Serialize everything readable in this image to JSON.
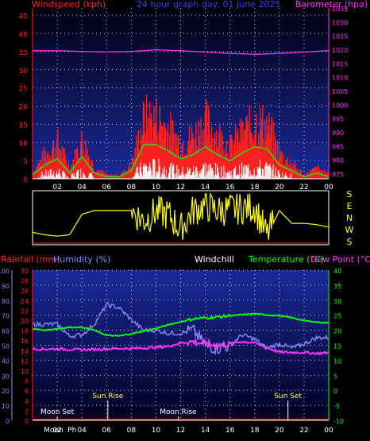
{
  "colors": {
    "wind": "#ff2020",
    "gust_green": "#00ff00",
    "white_bars": "#ffffff",
    "barometer": "#ff33ff",
    "direction": "#ffff00",
    "humidity": "#8888ff",
    "temperature": "#00ff00",
    "dewpoint": "#ff33ff",
    "rainfall": "#ff2020",
    "grid": "#ffffff",
    "panel_top": "#1a2a9a",
    "panel_bottom": "#000020"
  },
  "header": {
    "windspeed_label": "Windspeed (kph)",
    "graph_title": "24 hour graph day: 01 June 2025",
    "barometer_label": "Barometer (hpa)"
  },
  "panel2_header": {
    "rainfall_label": "Rainfall (mm)",
    "humidity_label": "Humidity (%)",
    "windchill_label": "Windchill",
    "temperature_label": "Temperature (°C)",
    "dewpoint_label": "Dew Point (°C)"
  },
  "chart_data": [
    {
      "type": "area",
      "xlabel": "",
      "x_ticks": [
        "02",
        "04",
        "06",
        "08",
        "10",
        "12",
        "14",
        "16",
        "18",
        "20",
        "22",
        "00"
      ],
      "ylabel": "Windspeed (kph)",
      "ylim": [
        0,
        47
      ],
      "y_ticks": [
        0,
        5,
        10,
        15,
        20,
        25,
        30,
        35,
        40,
        45
      ],
      "y2label": "Barometer (hpa)",
      "y2lim": [
        973,
        1035
      ],
      "y2_ticks": [
        975,
        980,
        985,
        990,
        995,
        1000,
        1005,
        1010,
        1015,
        1020,
        1025,
        1030,
        1035
      ],
      "series": [
        {
          "name": "Windspeed (kph)",
          "x": [
            0,
            1,
            2,
            3,
            4,
            5,
            6,
            7,
            8,
            9,
            10,
            11,
            12,
            13,
            14,
            15,
            16,
            17,
            18,
            19,
            20,
            21,
            22,
            23,
            24
          ],
          "values": [
            2,
            7,
            10,
            3,
            11,
            3,
            1,
            1,
            4,
            17,
            17,
            14,
            10,
            12,
            16,
            12,
            9,
            13,
            16,
            15,
            7,
            4,
            1,
            3,
            1
          ]
        },
        {
          "name": "Barometer (hpa)",
          "x": [
            0,
            2,
            4,
            6,
            8,
            10,
            12,
            14,
            16,
            18,
            20,
            22,
            24
          ],
          "values": [
            1019.5,
            1019.5,
            1019.2,
            1019,
            1019.2,
            1019.8,
            1019.5,
            1019,
            1018.5,
            1018.2,
            1018.5,
            1019,
            1019.5
          ]
        }
      ]
    },
    {
      "type": "line",
      "xlim": [
        0,
        24
      ],
      "y_labels": [
        "S",
        "E",
        "N",
        "W",
        "S"
      ],
      "series": [
        {
          "name": "Wind direction",
          "x": [
            0,
            1,
            2,
            3,
            4,
            5,
            6,
            7,
            8,
            9,
            10,
            11,
            12,
            13,
            14,
            15,
            16,
            17,
            18,
            19,
            20,
            21,
            22,
            23,
            24
          ],
          "values": [
            60,
            40,
            30,
            40,
            200,
            230,
            230,
            230,
            230,
            150,
            220,
            200,
            80,
            230,
            270,
            230,
            240,
            250,
            260,
            30,
            230,
            130,
            130,
            120,
            100
          ]
        }
      ]
    },
    {
      "type": "line",
      "x_ticks": [
        "02",
        "04",
        "06",
        "08",
        "10",
        "12",
        "14",
        "16",
        "18",
        "20",
        "22",
        "00"
      ],
      "y_rain_ticks": [
        0,
        2,
        4,
        6,
        8,
        10,
        12,
        14,
        16,
        18,
        20,
        22,
        24,
        26,
        28,
        30
      ],
      "y_humidity_ticks": [
        0,
        10,
        20,
        30,
        40,
        50,
        60,
        70,
        80,
        90,
        100
      ],
      "y_temp_ticks": [
        -10,
        -5,
        0,
        5,
        10,
        15,
        20,
        25,
        30,
        35,
        40
      ],
      "annotations": [
        {
          "text": "Moon Set",
          "x": 2.0
        },
        {
          "text": "Sun Rise",
          "x": 6.1
        },
        {
          "text": "Moon Rise",
          "x": 11.8
        },
        {
          "text": "Sun Set",
          "x": 20.7
        },
        {
          "text": "Moon",
          "x": 1.7
        },
        {
          "text": "Ph",
          "x": 3.2
        }
      ],
      "series": [
        {
          "name": "Humidity (%)",
          "x": [
            0,
            1,
            2,
            3,
            4,
            5,
            6,
            7,
            8,
            9,
            10,
            11,
            12,
            13,
            14,
            15,
            16,
            17,
            18,
            19,
            20,
            21,
            22,
            23,
            24
          ],
          "values": [
            64,
            64,
            64,
            56,
            57,
            64,
            77,
            75,
            67,
            60,
            60,
            58,
            58,
            60,
            50,
            48,
            50,
            57,
            54,
            48,
            51,
            48,
            51,
            55,
            55
          ]
        },
        {
          "name": "Temperature (°C)",
          "x": [
            0,
            1,
            2,
            3,
            4,
            5,
            6,
            7,
            8,
            9,
            10,
            11,
            12,
            13,
            14,
            15,
            16,
            17,
            18,
            19,
            20,
            21,
            22,
            23,
            24
          ],
          "values": [
            20.5,
            20,
            20.5,
            21,
            21,
            20,
            18.3,
            18.1,
            18.8,
            19.7,
            20.6,
            21.8,
            22.8,
            23.8,
            24.1,
            24.4,
            24.8,
            25.2,
            25.5,
            25.1,
            24.8,
            24.2,
            23.2,
            22.7,
            22.4
          ]
        },
        {
          "name": "Dew Point (°C)",
          "x": [
            0,
            1,
            2,
            3,
            4,
            5,
            6,
            7,
            8,
            9,
            10,
            11,
            12,
            13,
            14,
            15,
            16,
            17,
            18,
            19,
            20,
            21,
            22,
            23,
            24
          ],
          "values": [
            13.7,
            13.7,
            13.8,
            13.6,
            13.5,
            13.6,
            13.8,
            13.9,
            13.9,
            14.1,
            14.3,
            14.6,
            15.8,
            16.2,
            15.5,
            14.9,
            15.6,
            16.2,
            15.8,
            14.2,
            12.7,
            12.6,
            12.6,
            12.3,
            12.5
          ]
        },
        {
          "name": "Rainfall (mm)",
          "x": [
            0,
            24
          ],
          "values": [
            0,
            0
          ]
        }
      ]
    }
  ]
}
